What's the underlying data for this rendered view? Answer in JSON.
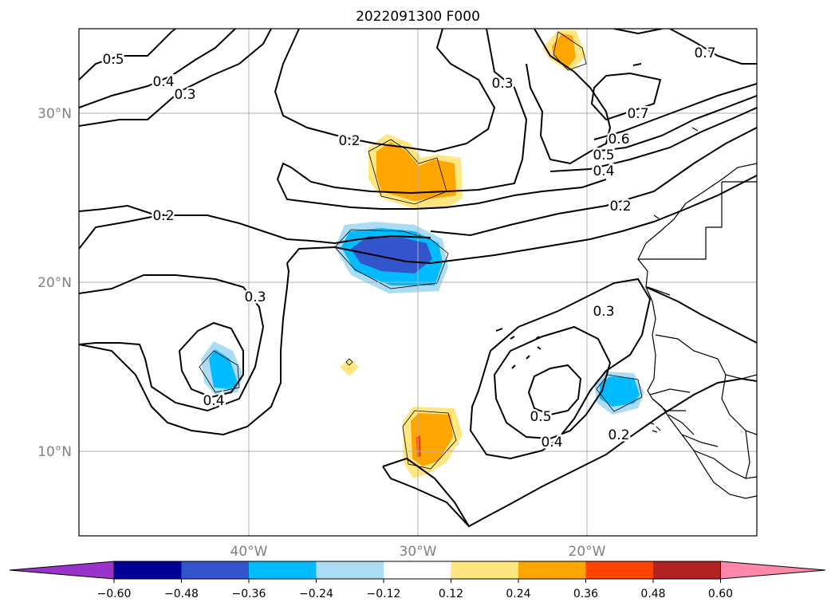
{
  "title": "2022091300 F000",
  "colors": {
    "ocean": "#ffffff",
    "grid": "#b0b0b0",
    "contour": "#000000",
    "coast": "#000000"
  },
  "map": {
    "type": "filled-contour + line-contour map",
    "lon_range": [
      -50,
      -10
    ],
    "lat_range": [
      5,
      35
    ],
    "lon_ticks": [
      {
        "lon": -40,
        "label": "40°W"
      },
      {
        "lon": -30,
        "label": "30°W"
      },
      {
        "lon": -20,
        "label": "20°W"
      }
    ],
    "lat_ticks": [
      {
        "lat": 30,
        "label": "30°N"
      },
      {
        "lat": 20,
        "label": "20°N"
      },
      {
        "lat": 10,
        "label": "10°N"
      }
    ],
    "contour_labels": [
      "0.5",
      "0.4",
      "0.3",
      "0.2",
      "0.2",
      "0.3",
      "0.4",
      "0.3",
      "0.3",
      "0.5",
      "0.4",
      "0.2",
      "0.6",
      "0.7",
      "0.7",
      "0.5",
      "0.4",
      "0.2"
    ]
  },
  "colorbar": {
    "tick_labels": [
      "−0.60",
      "−0.48",
      "−0.36",
      "−0.24",
      "−0.12",
      "0.12",
      "0.24",
      "0.36",
      "0.48",
      "0.60"
    ],
    "colors": [
      "#9933cc",
      "#000099",
      "#3355cc",
      "#00bbff",
      "#aaddf5",
      "#ffffff",
      "#ffe680",
      "#ffa500",
      "#ff4400",
      "#b22222",
      "#ff88aa"
    ]
  }
}
